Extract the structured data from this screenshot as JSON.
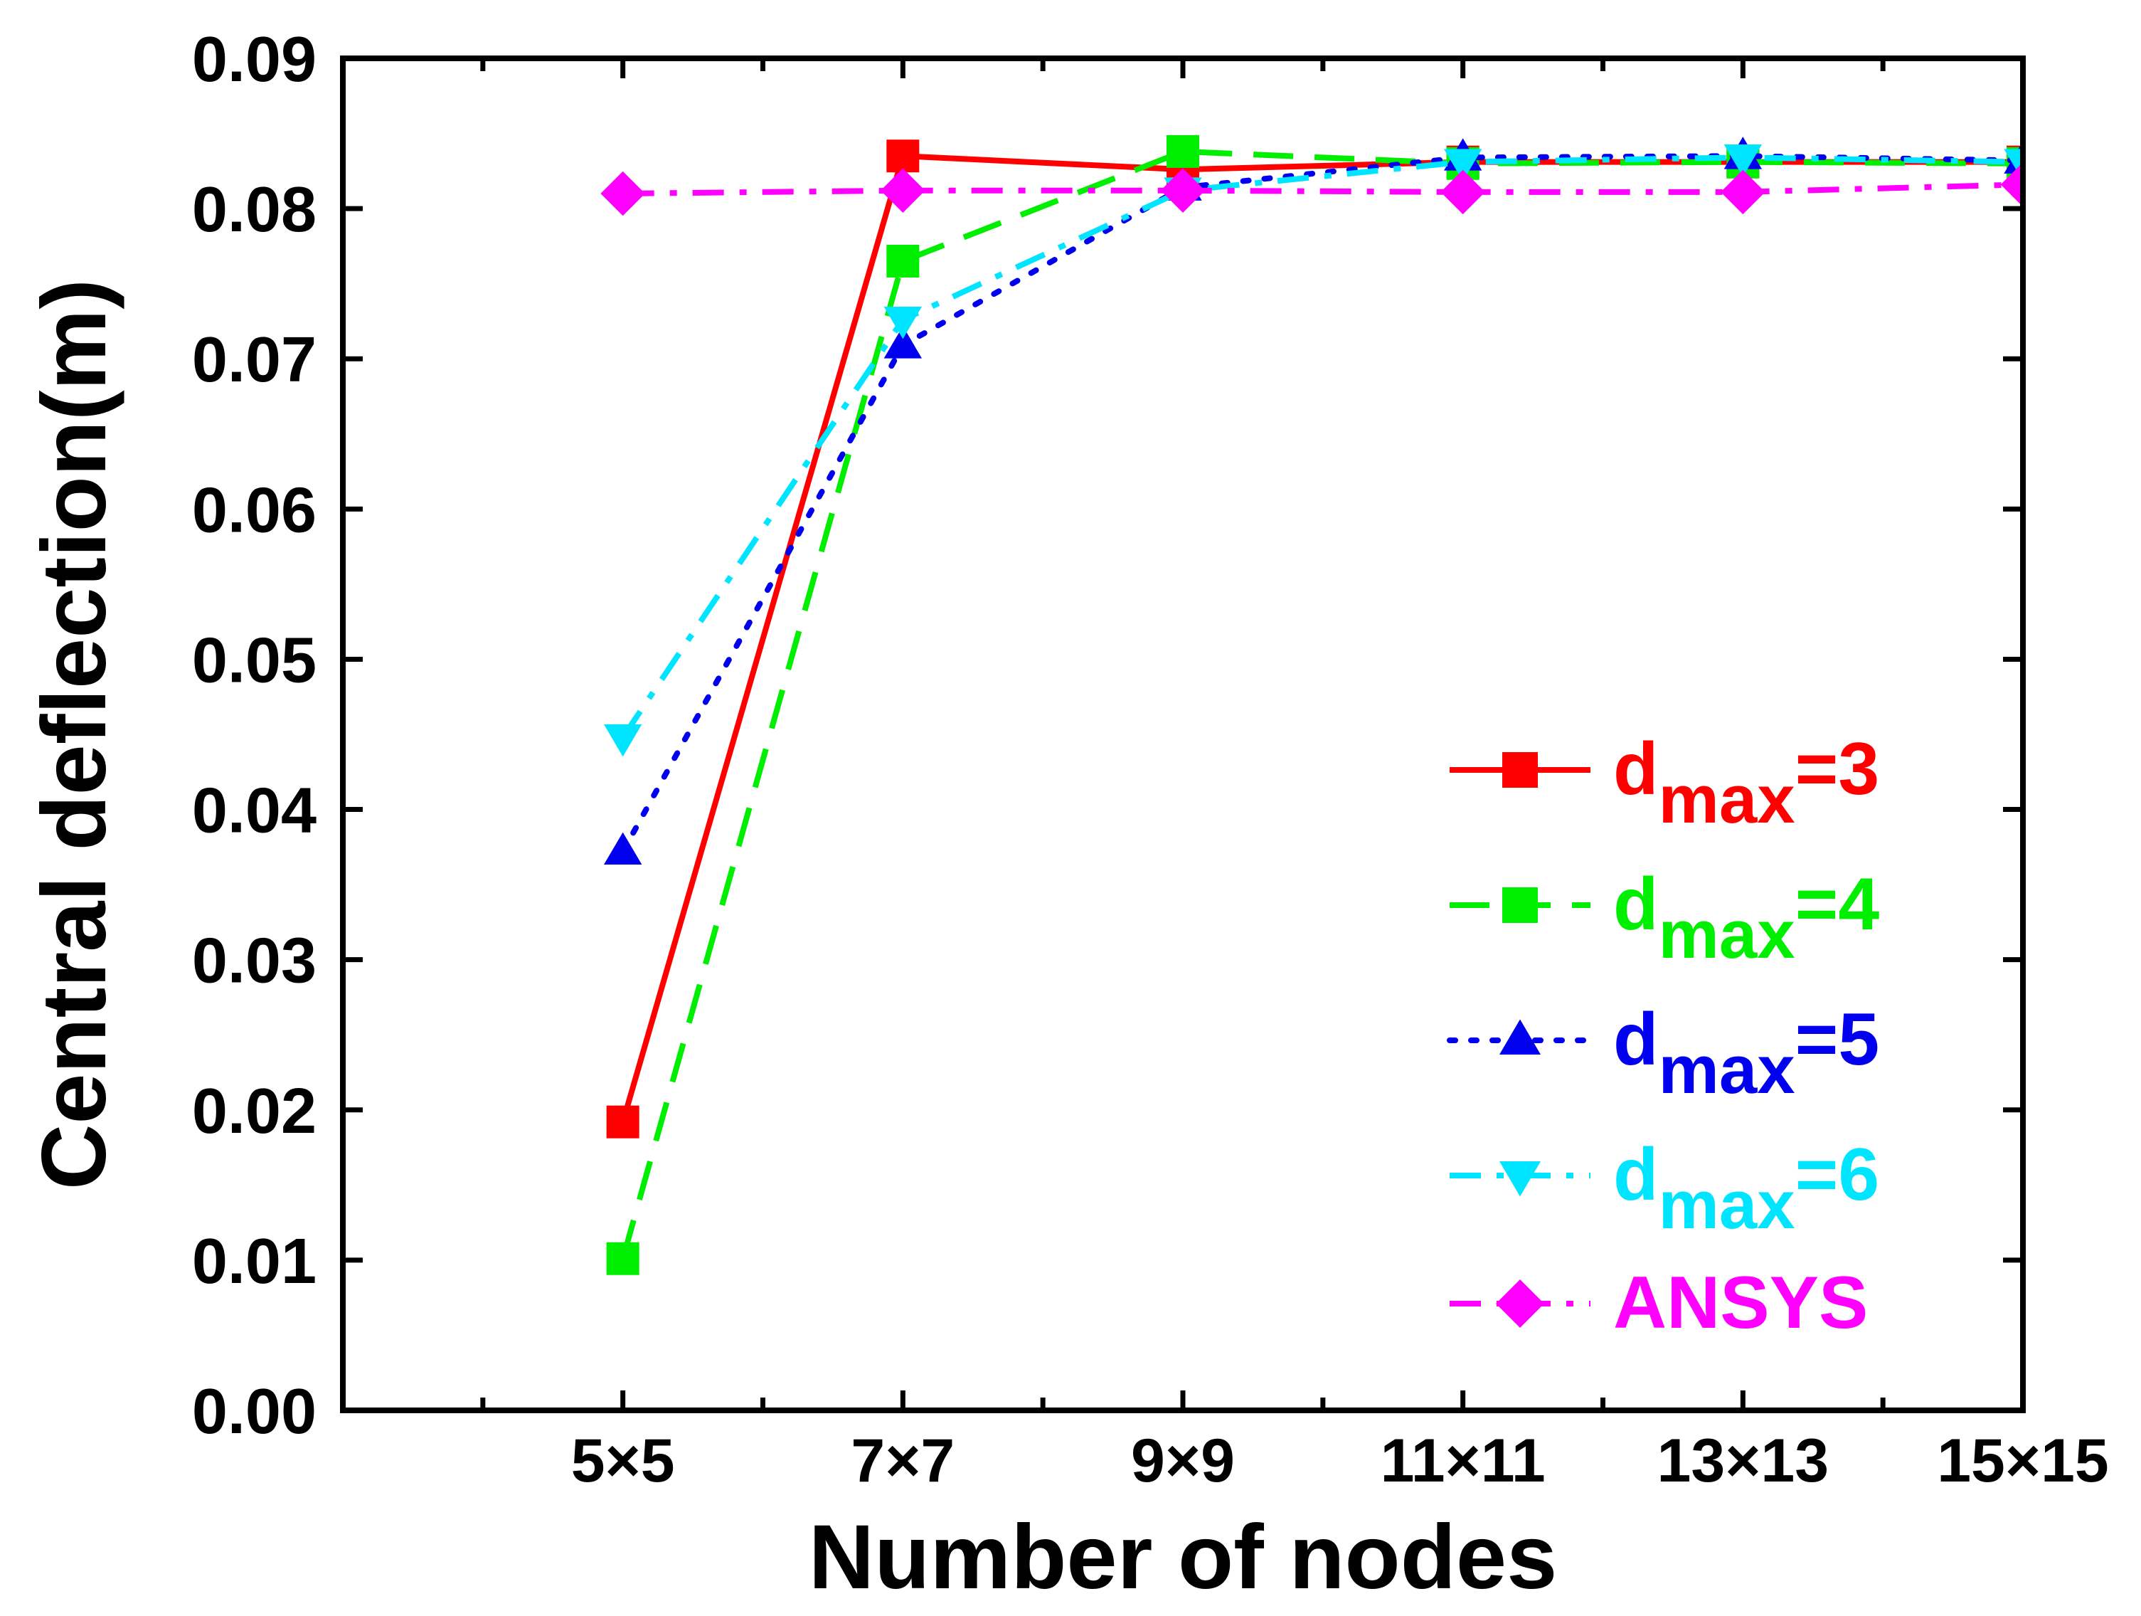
{
  "chart_data": {
    "type": "line",
    "title": "",
    "xlabel": "Number of nodes",
    "ylabel": "Central deflection(m)",
    "categories": [
      "5×5",
      "7×7",
      "9×9",
      "11×11",
      "13×13",
      "15×15"
    ],
    "x_positions": [
      5,
      7,
      9,
      11,
      13,
      15
    ],
    "xlim": [
      3,
      15
    ],
    "ylim": [
      0,
      0.09
    ],
    "yticks": [
      "0.00",
      "0.01",
      "0.02",
      "0.03",
      "0.04",
      "0.05",
      "0.06",
      "0.07",
      "0.08",
      "0.09"
    ],
    "legend_position": "bottom-right",
    "grid": false,
    "series": [
      {
        "name": "dmax=3",
        "name_base": "d",
        "name_sub": "max",
        "name_suffix": "=3",
        "color": "#ff0000",
        "marker": "square",
        "line": "solid",
        "values": [
          0.0192,
          0.0835,
          0.0826,
          0.0831,
          0.0831,
          0.0831
        ]
      },
      {
        "name": "dmax=4",
        "name_base": "d",
        "name_sub": "max",
        "name_suffix": "=4",
        "color": "#00ee00",
        "marker": "square",
        "line": "dash",
        "values": [
          0.0101,
          0.0765,
          0.0838,
          0.083,
          0.0831,
          0.083
        ]
      },
      {
        "name": "dmax=5",
        "name_base": "d",
        "name_sub": "max",
        "name_suffix": "=5",
        "color": "#0000ee",
        "marker": "triangle-up",
        "line": "dot",
        "values": [
          0.0372,
          0.0709,
          0.0814,
          0.0834,
          0.0835,
          0.0832
        ]
      },
      {
        "name": "dmax=6",
        "name_base": "d",
        "name_sub": "max",
        "name_suffix": "=6",
        "color": "#00e5ff",
        "marker": "triangle-down",
        "line": "dashdot",
        "values": [
          0.0448,
          0.0726,
          0.0812,
          0.0831,
          0.0834,
          0.0831
        ]
      },
      {
        "name": "ANSYS",
        "name_base": "ANSYS",
        "name_sub": "",
        "name_suffix": "",
        "color": "#ff00ff",
        "marker": "diamond",
        "line": "dashdot",
        "values": [
          0.081,
          0.0812,
          0.0812,
          0.0811,
          0.0811,
          0.0816
        ]
      }
    ]
  }
}
